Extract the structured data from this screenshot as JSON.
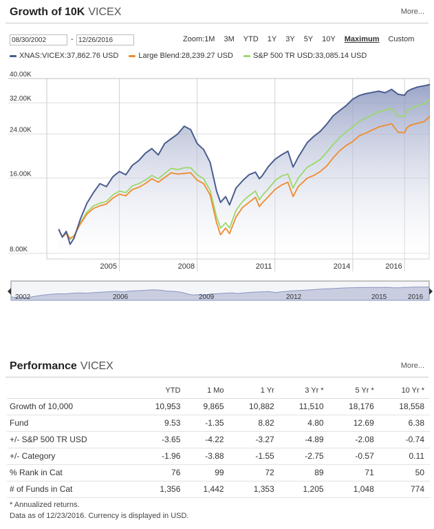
{
  "growth": {
    "title_bold": "Growth of 10K",
    "title_ticker": "VICEX",
    "more_label": "More...",
    "date_from": "08/30/2002",
    "date_sep": "-",
    "date_to": "12/26/2016",
    "zoom_label": "Zoom:",
    "zoom_options": [
      "1M",
      "3M",
      "YTD",
      "1Y",
      "3Y",
      "5Y",
      "10Y",
      "Maximum",
      "Custom"
    ],
    "zoom_active": "Maximum",
    "legend": [
      {
        "label": "XNAS:VICEX:37,862.76 USD",
        "color": "#4a5c8e"
      },
      {
        "label": "Large Blend:28,239.27 USD",
        "color": "#f08a2c"
      },
      {
        "label": "S&P 500 TR USD:33,085.14 USD",
        "color": "#9ad86a"
      }
    ]
  },
  "chart_data": {
    "type": "area",
    "yscale": "log",
    "ylim": [
      7600,
      40000
    ],
    "xlim": [
      2002.2,
      2016.95
    ],
    "y_ticks": [
      {
        "v": 8000,
        "label": "8.00K"
      },
      {
        "v": 16000,
        "label": "16.00K"
      },
      {
        "v": 24000,
        "label": "24.00K"
      },
      {
        "v": 32000,
        "label": "32.00K"
      },
      {
        "v": 40000,
        "label": "40.00K"
      }
    ],
    "x_ticks": [
      {
        "v": 2005,
        "label": "2005"
      },
      {
        "v": 2008,
        "label": "2008"
      },
      {
        "v": 2011,
        "label": "2011"
      },
      {
        "v": 2014,
        "label": "2014"
      },
      {
        "v": 2016,
        "label": "2016"
      }
    ],
    "x": [
      2002.66,
      2002.8,
      2002.95,
      2003.1,
      2003.25,
      2003.5,
      2003.75,
      2004.0,
      2004.25,
      2004.5,
      2004.75,
      2005.0,
      2005.25,
      2005.5,
      2005.75,
      2006.0,
      2006.25,
      2006.5,
      2006.75,
      2007.0,
      2007.25,
      2007.5,
      2007.75,
      2008.0,
      2008.25,
      2008.5,
      2008.75,
      2008.9,
      2009.1,
      2009.25,
      2009.5,
      2009.75,
      2010.0,
      2010.25,
      2010.4,
      2010.5,
      2010.75,
      2011.0,
      2011.25,
      2011.5,
      2011.7,
      2011.9,
      2012.25,
      2012.5,
      2012.75,
      2013.0,
      2013.25,
      2013.5,
      2013.75,
      2014.0,
      2014.25,
      2014.5,
      2014.75,
      2015.0,
      2015.25,
      2015.5,
      2015.75,
      2016.0,
      2016.1,
      2016.25,
      2016.5,
      2016.75,
      2016.98
    ],
    "series": [
      {
        "name": "XNAS:VICEX",
        "color": "#4a5c8e",
        "fill": true,
        "values": [
          10000,
          9300,
          9800,
          8700,
          9200,
          11000,
          12700,
          14000,
          15200,
          14800,
          16200,
          17000,
          16500,
          18000,
          18800,
          20100,
          21000,
          19800,
          22000,
          23000,
          24000,
          25800,
          25000,
          22000,
          20800,
          18500,
          14200,
          12800,
          13500,
          12500,
          14600,
          15600,
          16500,
          16900,
          15900,
          16300,
          17800,
          19000,
          19800,
          20500,
          17700,
          19400,
          22200,
          23500,
          24600,
          26300,
          28400,
          29800,
          31200,
          33100,
          34200,
          34800,
          35200,
          35600,
          35100,
          36200,
          34600,
          34300,
          35500,
          36200,
          37000,
          37400,
          37862
        ]
      },
      {
        "name": "Large Blend",
        "color": "#f08a2c",
        "fill": false,
        "values": [
          10000,
          9300,
          9600,
          9200,
          9400,
          10500,
          11500,
          12100,
          12400,
          12600,
          13300,
          13800,
          13600,
          14400,
          14700,
          15200,
          15900,
          15400,
          16100,
          16800,
          16600,
          16700,
          16800,
          15700,
          15200,
          13700,
          10600,
          9500,
          10100,
          9600,
          11200,
          12200,
          12800,
          13400,
          12300,
          12700,
          13500,
          14400,
          15000,
          15400,
          13500,
          14800,
          16000,
          16400,
          17000,
          17900,
          19300,
          20600,
          21600,
          22400,
          23600,
          24200,
          24900,
          25600,
          26000,
          26400,
          24400,
          24300,
          25500,
          26100,
          26500,
          26900,
          28239
        ]
      },
      {
        "name": "S&P 500 TR USD",
        "color": "#9ad86a",
        "fill": false,
        "values": [
          10000,
          9300,
          9800,
          9100,
          9400,
          10600,
          11700,
          12400,
          12700,
          12900,
          13700,
          14200,
          14000,
          14900,
          15200,
          15700,
          16400,
          15900,
          16700,
          17500,
          17300,
          17600,
          17600,
          16500,
          15900,
          14300,
          11200,
          10100,
          10600,
          10100,
          11900,
          12900,
          13600,
          14200,
          13100,
          13600,
          14500,
          15600,
          16300,
          16600,
          14600,
          16000,
          17700,
          18300,
          19000,
          20300,
          21800,
          23300,
          24500,
          25600,
          27000,
          27800,
          28600,
          29400,
          29900,
          30400,
          28300,
          28300,
          29800,
          30500,
          31100,
          31700,
          33085
        ]
      }
    ]
  },
  "navigator": {
    "labels": [
      "2002",
      "2006",
      "2009",
      "2012",
      "2015",
      "2016"
    ]
  },
  "performance": {
    "title_bold": "Performance",
    "title_ticker": "VICEX",
    "more_label": "More...",
    "columns": [
      "",
      "YTD",
      "1 Mo",
      "1 Yr",
      "3 Yr *",
      "5 Yr *",
      "10 Yr *"
    ],
    "rows": [
      [
        "Growth of 10,000",
        "10,953",
        "9,865",
        "10,882",
        "11,510",
        "18,176",
        "18,558"
      ],
      [
        "Fund",
        "9.53",
        "-1.35",
        "8.82",
        "4.80",
        "12.69",
        "6.38"
      ],
      [
        "+/- S&P 500 TR USD",
        "-3.65",
        "-4.22",
        "-3.27",
        "-4.89",
        "-2.08",
        "-0.74"
      ],
      [
        "+/- Category",
        "-1.96",
        "-3.88",
        "-1.55",
        "-2.75",
        "-0.57",
        "0.11"
      ],
      [
        "% Rank in Cat",
        "76",
        "99",
        "72",
        "89",
        "71",
        "50"
      ],
      [
        "# of Funds in Cat",
        "1,356",
        "1,442",
        "1,353",
        "1,205",
        "1,048",
        "774"
      ]
    ],
    "footnote1": "* Annualized returns.",
    "footnote2": "Data as of 12/23/2016. Currency is displayed in USD."
  }
}
